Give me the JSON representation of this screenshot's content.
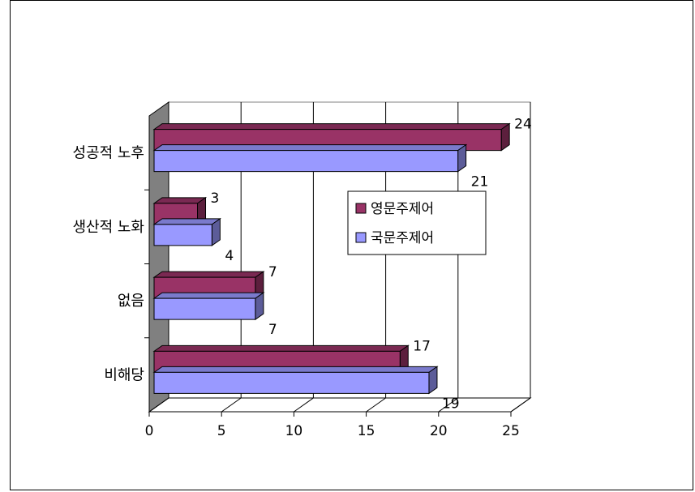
{
  "chart_data": {
    "type": "bar",
    "orientation": "horizontal",
    "three_d": true,
    "categories": [
      "성공적 노후",
      "생산적 노화",
      "없음",
      "비해당"
    ],
    "series": [
      {
        "name": "영문주제어",
        "values": [
          24,
          3,
          7,
          17
        ],
        "color": "#993366"
      },
      {
        "name": "국문주제어",
        "values": [
          21,
          4,
          7,
          19
        ],
        "color": "#9999ff"
      }
    ],
    "x_ticks": [
      "0",
      "5",
      "10",
      "15",
      "20",
      "25"
    ],
    "xlim": [
      0,
      25
    ],
    "grid": true,
    "legend_position": "inside-right"
  }
}
